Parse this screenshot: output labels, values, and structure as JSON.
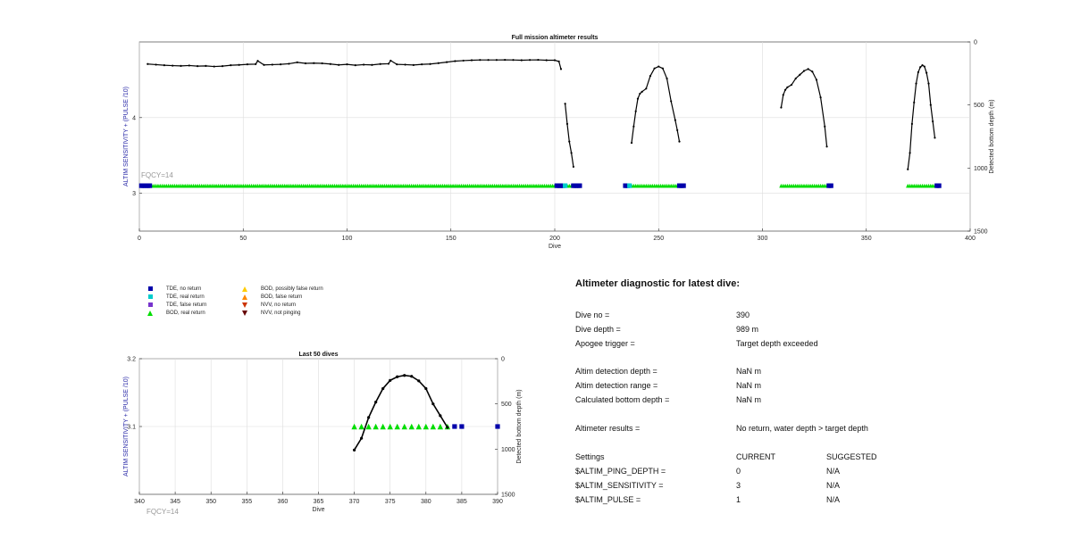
{
  "colors": {
    "tde_no_return": "#0000aa",
    "tde_real_return": "#00cccc",
    "tde_false_return": "#7733cc",
    "bod_real_return": "#00dd00",
    "bod_possibly_false": "#ffcc00",
    "bod_false_return": "#ff8800",
    "nvv_no_return": "#cc3300",
    "nvv_not_pinging": "#660000",
    "left_axis_label": "#2a2aa8",
    "fqcy_label": "#999999",
    "series_line": "#000000"
  },
  "legend": [
    {
      "label": "TDE, no return",
      "marker": "square",
      "color_key": "tde_no_return"
    },
    {
      "label": "TDE, real return",
      "marker": "square",
      "color_key": "tde_real_return"
    },
    {
      "label": "TDE, false return",
      "marker": "square",
      "color_key": "tde_false_return"
    },
    {
      "label": "BOD, real return",
      "marker": "triangle-up",
      "color_key": "bod_real_return"
    },
    {
      "label": "BOD, possibly false return",
      "marker": "triangle-up",
      "color_key": "bod_possibly_false"
    },
    {
      "label": "BOD, false return",
      "marker": "triangle-up",
      "color_key": "bod_false_return"
    },
    {
      "label": "NVV, no return",
      "marker": "triangle-down",
      "color_key": "nvv_no_return"
    },
    {
      "label": "NVV, not pinging",
      "marker": "triangle-down",
      "color_key": "nvv_not_pinging"
    }
  ],
  "chart_data": [
    {
      "type": "line",
      "title": "Full mission altimeter results",
      "xlabel": "Dive",
      "ylabel": "ALTIM SENSITIVITY + (PULSE /10)",
      "y2label": "Detected bottom depth (m)",
      "xlim": [
        0,
        400
      ],
      "xticks": [
        0,
        50,
        100,
        150,
        200,
        250,
        300,
        350,
        400
      ],
      "ylim": [
        2.5,
        5
      ],
      "yticks": [
        3,
        4
      ],
      "y2lim": [
        0,
        1500
      ],
      "y2ticks": [
        0,
        500,
        1000,
        1500
      ],
      "grid": true,
      "annotation": "FQCY=14",
      "sensitivity_value": 3.1,
      "bod_real_dives": [
        [
          6,
          200
        ],
        [
          206,
          208
        ],
        [
          237,
          259
        ],
        [
          309,
          331
        ],
        [
          370,
          383
        ]
      ],
      "tde_no_return_dives": [
        1,
        2,
        3,
        4,
        5,
        201,
        202,
        203,
        204,
        209,
        210,
        211,
        212,
        234,
        235,
        260,
        261,
        262,
        332,
        333,
        384,
        385
      ],
      "tde_real_return_dives": [
        205,
        236
      ],
      "depth_series": [
        {
          "x": [
            4,
            8,
            12,
            16,
            20,
            24,
            28,
            32,
            36,
            40,
            44,
            48,
            52,
            56,
            57,
            60,
            64,
            68,
            72,
            76,
            80,
            84,
            88,
            92,
            96,
            100,
            104,
            108,
            112,
            116,
            120,
            121,
            124,
            128,
            132,
            136,
            140,
            144,
            148,
            152,
            156,
            160,
            164,
            168,
            172,
            176,
            180,
            184,
            188,
            192,
            196,
            200,
            202,
            203
          ],
          "y": [
            175,
            180,
            185,
            188,
            190,
            187,
            192,
            190,
            195,
            192,
            185,
            182,
            178,
            176,
            150,
            182,
            180,
            178,
            173,
            162,
            170,
            168,
            170,
            175,
            182,
            178,
            185,
            180,
            182,
            175,
            173,
            148,
            178,
            180,
            183,
            178,
            175,
            168,
            160,
            152,
            148,
            145,
            143,
            143,
            143,
            142,
            143,
            145,
            143,
            142,
            145,
            145,
            155,
            215
          ]
        },
        {
          "x": [
            205,
            206,
            207,
            208,
            209
          ],
          "y": [
            490,
            650,
            790,
            880,
            990
          ]
        },
        {
          "x": [
            237,
            238,
            239,
            240,
            241,
            242,
            244,
            246,
            248,
            250,
            252,
            254,
            256,
            258,
            259,
            260
          ],
          "y": [
            800,
            670,
            550,
            450,
            410,
            395,
            370,
            270,
            210,
            195,
            210,
            290,
            470,
            620,
            700,
            790
          ]
        },
        {
          "x": [
            309,
            310,
            311,
            312,
            314,
            316,
            318,
            320,
            322,
            324,
            326,
            328,
            330,
            331
          ],
          "y": [
            520,
            420,
            380,
            360,
            340,
            290,
            260,
            230,
            215,
            235,
            300,
            440,
            670,
            830
          ]
        },
        {
          "x": [
            370,
            371,
            372,
            373,
            374,
            375,
            376,
            377,
            378,
            379,
            380,
            381,
            382,
            383
          ],
          "y": [
            1010,
            880,
            650,
            480,
            330,
            240,
            200,
            185,
            195,
            245,
            330,
            500,
            630,
            760
          ]
        }
      ]
    },
    {
      "type": "line",
      "title": "Last 50 dives",
      "xlabel": "Dive",
      "ylabel": "ALTIM SENSITIVITY + (PULSE /10)",
      "y2label": "Detected bottom depth (m)",
      "xlim": [
        340,
        390
      ],
      "xticks": [
        340,
        345,
        350,
        355,
        360,
        365,
        370,
        375,
        380,
        385,
        390
      ],
      "ylim": [
        3.0,
        3.2
      ],
      "yticks": [
        3.1,
        3.2
      ],
      "y2lim": [
        0,
        1500
      ],
      "y2ticks": [
        0,
        500,
        1000,
        1500
      ],
      "grid": true,
      "annotation": "FQCY=14",
      "sensitivity_value": 3.1,
      "bod_real_dives": [
        370,
        371,
        372,
        373,
        374,
        375,
        376,
        377,
        378,
        379,
        380,
        381,
        382,
        383
      ],
      "tde_no_return_dives": [
        384,
        385,
        390
      ],
      "depth_series": [
        {
          "x": [
            370,
            371,
            372,
            373,
            374,
            375,
            376,
            377,
            378,
            379,
            380,
            381,
            382,
            383
          ],
          "y": [
            1010,
            880,
            650,
            480,
            330,
            240,
            200,
            185,
            195,
            245,
            330,
            500,
            630,
            760
          ]
        }
      ]
    }
  ],
  "diagnostic": {
    "title": "Altimeter diagnostic for latest dive:",
    "rows": [
      {
        "label": "Dive no =",
        "value": "390",
        "suggested": ""
      },
      {
        "label": "Dive depth =",
        "value": "989 m",
        "suggested": ""
      },
      {
        "label": "Apogee trigger =",
        "value": "Target depth exceeded",
        "suggested": ""
      },
      {
        "label": "Altim detection depth =",
        "value": "NaN m",
        "suggested": ""
      },
      {
        "label": "Altim detection range =",
        "value": "NaN m",
        "suggested": ""
      },
      {
        "label": "Calculated bottom depth =",
        "value": "NaN m",
        "suggested": ""
      },
      {
        "label": "Altimeter results =",
        "value": "No return, water depth > target depth",
        "suggested": ""
      },
      {
        "label": "Settings",
        "value": "CURRENT",
        "suggested": "SUGGESTED"
      },
      {
        "label": "$ALTIM_PING_DEPTH =",
        "value": "0",
        "suggested": "N/A"
      },
      {
        "label": "$ALTIM_SENSITIVITY =",
        "value": "3",
        "suggested": "N/A"
      },
      {
        "label": "$ALTIM_PULSE =",
        "value": "1",
        "suggested": "N/A"
      }
    ]
  }
}
